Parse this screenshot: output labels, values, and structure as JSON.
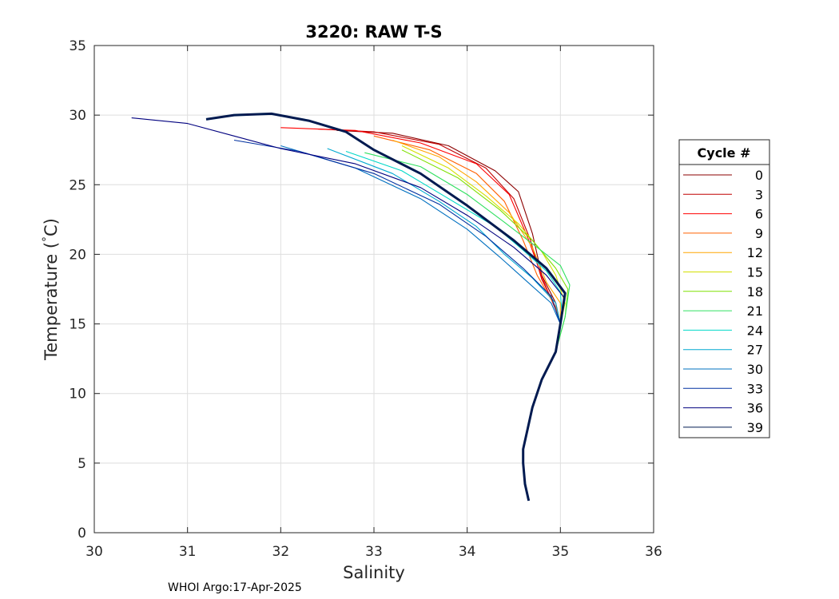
{
  "chart_data": {
    "type": "line",
    "title": "3220: RAW T-S",
    "xlabel": "Salinity",
    "ylabel": "Temperature (",
    "ylabel_unit": "C)",
    "xlim": [
      30,
      36
    ],
    "ylim": [
      0,
      35
    ],
    "xticks": [
      "30",
      "31",
      "32",
      "33",
      "34",
      "35",
      "36"
    ],
    "yticks": [
      "0",
      "5",
      "10",
      "15",
      "20",
      "25",
      "30",
      "35"
    ],
    "grid": true,
    "legend": {
      "title": "Cycle #",
      "placement": "right-outside",
      "entries": [
        "0",
        "3",
        "6",
        "9",
        "12",
        "15",
        "18",
        "21",
        "24",
        "27",
        "30",
        "33",
        "36",
        "39"
      ],
      "colors": [
        "#8b0000",
        "#c00000",
        "#ff0000",
        "#ff6000",
        "#ffa500",
        "#d4e000",
        "#7fe000",
        "#30e060",
        "#00d8c8",
        "#00a8d0",
        "#0070c0",
        "#0030a0",
        "#00007f",
        "#001a50"
      ]
    },
    "series": [
      {
        "name": "0",
        "color": "#8b0000",
        "x": [
          32.6,
          33.2,
          33.8,
          34.3,
          34.55,
          34.7,
          34.8,
          34.95,
          35.0,
          34.95,
          34.8,
          34.7,
          34.65,
          34.6,
          34.6,
          34.62,
          34.66
        ],
        "y": [
          28.9,
          28.7,
          27.8,
          26.0,
          24.5,
          21.5,
          18.5,
          16.5,
          15.0,
          13.0,
          11.0,
          9.0,
          7.5,
          6.0,
          5.0,
          3.5,
          2.3
        ]
      },
      {
        "name": "3",
        "color": "#c00000",
        "x": [
          32.4,
          33.0,
          33.7,
          34.2,
          34.5,
          34.68,
          34.8,
          34.95,
          35.0,
          34.95,
          34.8,
          34.7,
          34.65,
          34.6,
          34.6,
          34.62,
          34.66
        ],
        "y": [
          29.0,
          28.8,
          27.9,
          26.2,
          24.0,
          21.0,
          18.2,
          16.2,
          15.0,
          13.0,
          11.0,
          9.0,
          7.5,
          6.0,
          5.0,
          3.5,
          2.3
        ]
      },
      {
        "name": "6",
        "color": "#ff0000",
        "x": [
          32.0,
          32.8,
          33.5,
          34.1,
          34.45,
          34.65,
          34.8,
          34.95,
          35.0,
          34.95,
          34.8,
          34.7,
          34.65,
          34.6,
          34.6,
          34.62,
          34.66
        ],
        "y": [
          29.1,
          28.9,
          28.0,
          26.5,
          24.3,
          21.2,
          18.4,
          16.0,
          15.0,
          13.0,
          11.0,
          9.0,
          7.5,
          6.0,
          5.0,
          3.5,
          2.3
        ]
      },
      {
        "name": "9",
        "color": "#ff6000",
        "x": [
          33.0,
          33.6,
          34.1,
          34.4,
          34.6,
          34.75,
          34.95,
          35.0,
          34.95,
          34.8,
          34.7,
          34.65,
          34.6,
          34.6,
          34.62,
          34.66
        ],
        "y": [
          28.5,
          27.5,
          25.8,
          23.8,
          21.0,
          18.5,
          16.2,
          15.0,
          13.0,
          11.0,
          9.0,
          7.5,
          6.0,
          5.0,
          3.5,
          2.3
        ]
      },
      {
        "name": "12",
        "color": "#ffa500",
        "x": [
          33.2,
          33.7,
          34.1,
          34.45,
          34.7,
          34.85,
          35.0,
          35.0,
          34.95,
          34.8,
          34.7,
          34.65,
          34.6,
          34.6,
          34.62,
          34.66
        ],
        "y": [
          28.2,
          27.0,
          25.2,
          23.0,
          20.5,
          18.0,
          16.5,
          15.0,
          13.0,
          11.0,
          9.0,
          7.5,
          6.0,
          5.0,
          3.5,
          2.3
        ]
      },
      {
        "name": "15",
        "color": "#d4e000",
        "x": [
          33.3,
          33.8,
          34.2,
          34.55,
          34.8,
          34.95,
          35.05,
          35.0,
          34.95,
          34.8,
          34.7,
          34.65,
          34.6,
          34.6,
          34.62,
          34.66
        ],
        "y": [
          27.8,
          26.2,
          24.2,
          22.2,
          20.2,
          18.5,
          16.5,
          15.0,
          13.0,
          11.0,
          9.0,
          7.5,
          6.0,
          5.0,
          3.5,
          2.3
        ]
      },
      {
        "name": "18",
        "color": "#7fe000",
        "x": [
          33.3,
          33.9,
          34.35,
          34.7,
          34.95,
          35.08,
          35.05,
          34.95,
          34.8,
          34.7,
          34.65,
          34.6,
          34.6,
          34.62,
          34.66
        ],
        "y": [
          27.5,
          25.5,
          23.2,
          21.0,
          19.0,
          17.5,
          15.5,
          13.0,
          11.0,
          9.0,
          7.5,
          6.0,
          5.0,
          3.5,
          2.3
        ]
      },
      {
        "name": "21",
        "color": "#30e060",
        "x": [
          32.9,
          33.5,
          34.0,
          34.4,
          34.75,
          35.0,
          35.1,
          35.05,
          34.95,
          34.8,
          34.7,
          34.65,
          34.6,
          34.6,
          34.62,
          34.66
        ],
        "y": [
          27.3,
          26.3,
          24.3,
          22.3,
          20.5,
          19.2,
          17.8,
          15.5,
          13.0,
          11.0,
          9.0,
          7.5,
          6.0,
          5.0,
          3.5,
          2.3
        ]
      },
      {
        "name": "24",
        "color": "#00d8c8",
        "x": [
          32.7,
          33.3,
          33.8,
          34.3,
          34.6,
          34.85,
          35.0,
          35.02,
          34.95,
          34.8,
          34.7,
          34.65,
          34.6,
          34.6,
          34.62,
          34.66
        ],
        "y": [
          27.4,
          26.0,
          24.0,
          22.0,
          20.3,
          18.8,
          17.3,
          15.5,
          13.0,
          11.0,
          9.0,
          7.5,
          6.0,
          5.0,
          3.5,
          2.3
        ]
      },
      {
        "name": "27",
        "color": "#00a8d0",
        "x": [
          32.5,
          33.2,
          33.7,
          34.1,
          34.4,
          34.7,
          34.95,
          35.0,
          34.95,
          34.8,
          34.7,
          34.65,
          34.6,
          34.6,
          34.62,
          34.66
        ],
        "y": [
          27.6,
          25.8,
          23.8,
          22.0,
          20.0,
          18.3,
          16.5,
          15.0,
          13.0,
          11.0,
          9.0,
          7.5,
          6.0,
          5.0,
          3.5,
          2.3
        ]
      },
      {
        "name": "30",
        "color": "#0070c0",
        "x": [
          32.0,
          32.8,
          33.5,
          34.0,
          34.35,
          34.65,
          34.9,
          35.0,
          34.95,
          34.8,
          34.7,
          34.65,
          34.6,
          34.6,
          34.62,
          34.66
        ],
        "y": [
          27.8,
          26.2,
          24.0,
          21.8,
          19.8,
          18.0,
          16.5,
          15.0,
          13.0,
          11.0,
          9.0,
          7.5,
          6.0,
          5.0,
          3.5,
          2.3
        ]
      },
      {
        "name": "33",
        "color": "#0030a0",
        "x": [
          31.5,
          32.2,
          33.0,
          33.7,
          34.2,
          34.6,
          34.9,
          35.0,
          34.95,
          34.8,
          34.7,
          34.65,
          34.6,
          34.6,
          34.62,
          34.66
        ],
        "y": [
          28.2,
          27.4,
          25.8,
          23.6,
          21.3,
          19.0,
          17.0,
          15.0,
          13.0,
          11.0,
          9.0,
          7.5,
          6.0,
          5.0,
          3.5,
          2.3
        ]
      },
      {
        "name": "36",
        "color": "#00007f",
        "x": [
          30.4,
          31.0,
          31.5,
          32.0,
          32.8,
          33.5,
          34.0,
          34.5,
          34.85,
          35.05,
          35.0,
          34.95,
          34.8,
          34.7,
          34.65,
          34.6,
          34.6,
          34.62,
          34.66
        ],
        "y": [
          29.8,
          29.4,
          28.5,
          27.6,
          26.5,
          24.8,
          22.8,
          20.5,
          18.5,
          16.8,
          15.0,
          13.0,
          11.0,
          9.0,
          7.5,
          6.0,
          5.0,
          3.5,
          2.3
        ]
      },
      {
        "name": "39",
        "color": "#001a50",
        "x": [
          31.2,
          31.5,
          31.9,
          32.3,
          32.7,
          33.0,
          33.5,
          34.0,
          34.5,
          34.85,
          35.05,
          35.0,
          34.95,
          34.8,
          34.7,
          34.65,
          34.6,
          34.6,
          34.62,
          34.66
        ],
        "y": [
          29.7,
          30.0,
          30.1,
          29.6,
          28.8,
          27.5,
          25.8,
          23.5,
          21.0,
          19.0,
          17.2,
          15.0,
          13.0,
          11.0,
          9.0,
          7.5,
          6.0,
          5.0,
          3.5,
          2.3
        ]
      }
    ]
  },
  "footer": "WHOI Argo:17-Apr-2025"
}
